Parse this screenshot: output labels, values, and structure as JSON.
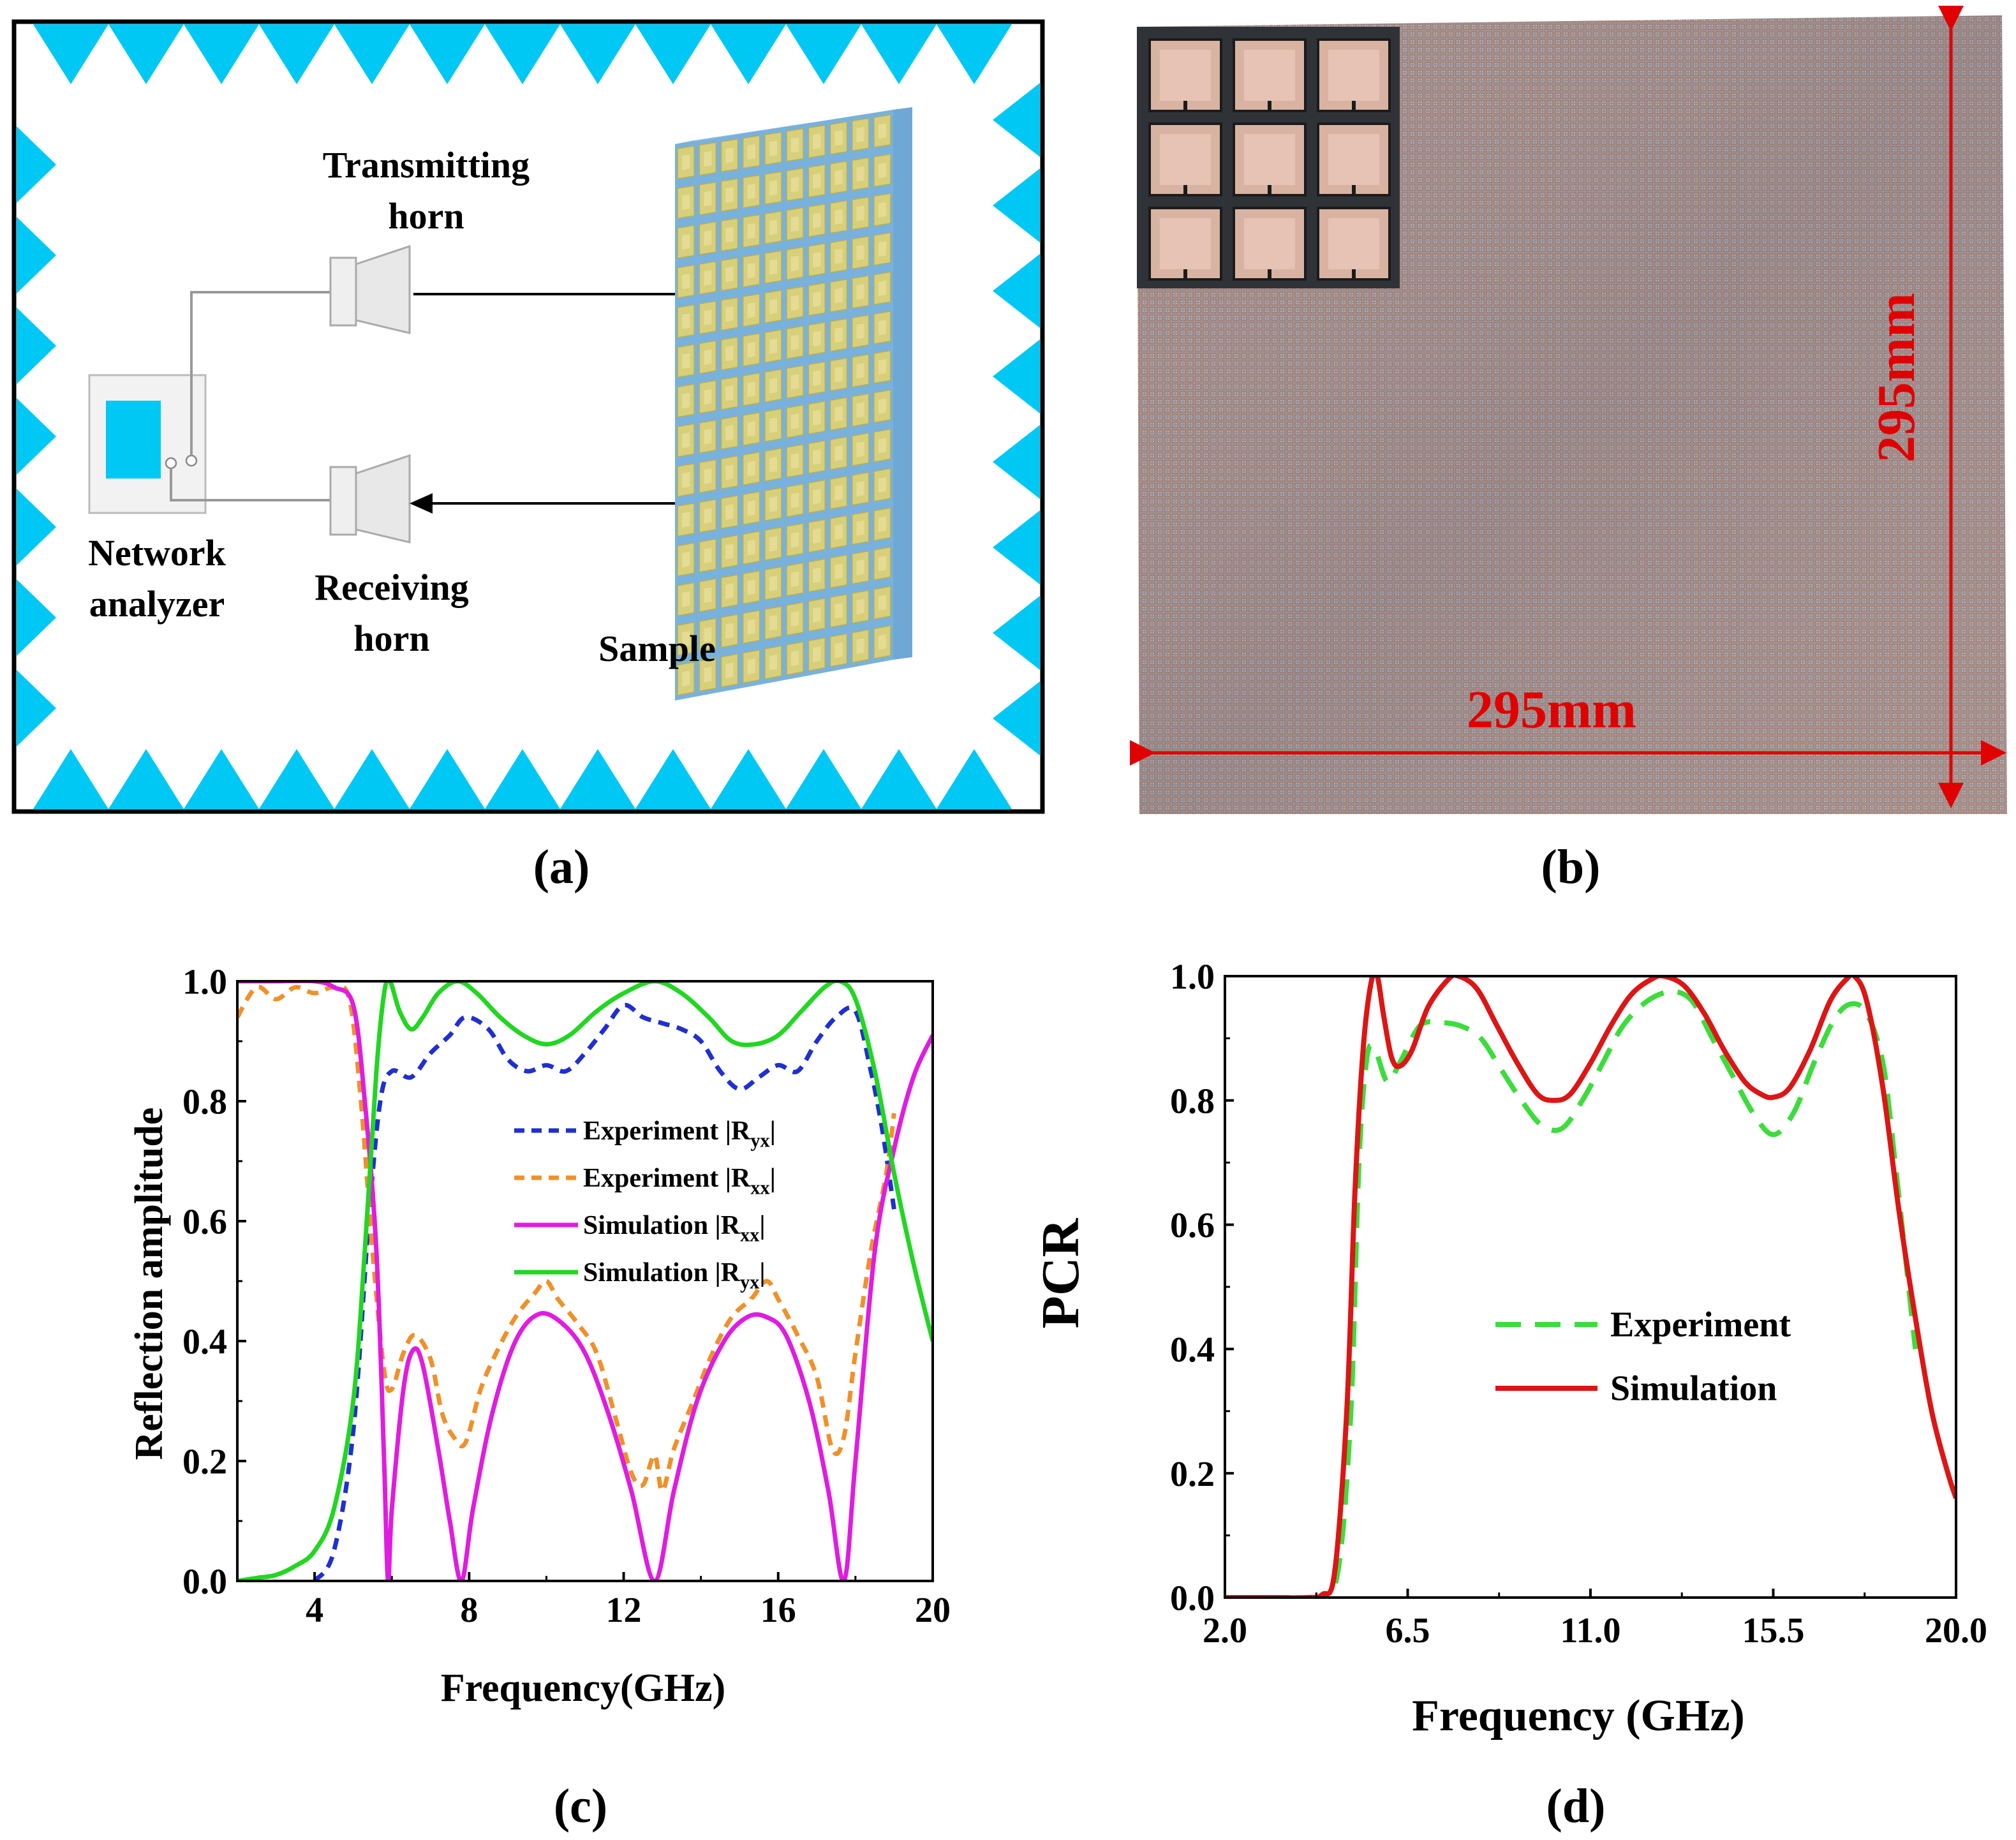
{
  "panels": {
    "a": {
      "label": "(a)",
      "transmitting_horn": [
        "Transmitting",
        "horn"
      ],
      "receiving_horn": [
        "Receiving",
        "horn"
      ],
      "network_analyzer": [
        "Network",
        "analyzer"
      ],
      "sample": "Sample"
    },
    "b": {
      "label": "(b)",
      "width_dim": "295mm",
      "height_dim": "295mm"
    },
    "c": {
      "label": "(c)"
    },
    "d": {
      "label": "(d)"
    }
  },
  "colors": {
    "absorber": "#00c8f5",
    "sample_face": "#d8cf7a",
    "sample_edge": "#6fa8d4",
    "photo_base": "#a98a80",
    "dimension": "#e00000",
    "exp_ryx": "#1f2fd1",
    "exp_rxx": "#f0902a",
    "sim_rxx": "#e01ce0",
    "sim_ryx": "#22d622",
    "pcr_exp": "#3ddc3d",
    "pcr_sim": "#dd1515"
  },
  "chart_data": [
    {
      "id": "c",
      "type": "line",
      "xlabel": "Frequency(GHz)",
      "ylabel": "Reflection amplitude",
      "xlim": [
        2,
        20
      ],
      "ylim": [
        0,
        1
      ],
      "xticks": [
        4,
        8,
        12,
        16,
        20
      ],
      "yticks": [
        0.0,
        0.2,
        0.4,
        0.6,
        0.8,
        1.0
      ],
      "xtick_labels": [
        "4",
        "8",
        "12",
        "16",
        "20"
      ],
      "ytick_labels": [
        "0.0",
        "0.2",
        "0.4",
        "0.6",
        "0.8",
        "1.0"
      ],
      "legend_position": "center",
      "series": [
        {
          "name": "Experiment |R_yx|",
          "legend": {
            "main": "Experiment |R",
            "sub": "yx",
            "end": "|"
          },
          "style": "dashed",
          "color_key": "exp_ryx",
          "points": [
            [
              4.0,
              0.0
            ],
            [
              4.5,
              0.05
            ],
            [
              5.0,
              0.25
            ],
            [
              5.4,
              0.6
            ],
            [
              5.7,
              0.8
            ],
            [
              6.0,
              0.85
            ],
            [
              6.5,
              0.84
            ],
            [
              7.0,
              0.88
            ],
            [
              7.5,
              0.91
            ],
            [
              7.9,
              0.94
            ],
            [
              8.5,
              0.92
            ],
            [
              9.0,
              0.87
            ],
            [
              9.5,
              0.85
            ],
            [
              10.0,
              0.86
            ],
            [
              10.5,
              0.85
            ],
            [
              11.0,
              0.88
            ],
            [
              11.5,
              0.92
            ],
            [
              12.0,
              0.96
            ],
            [
              12.5,
              0.94
            ],
            [
              13.0,
              0.93
            ],
            [
              13.5,
              0.92
            ],
            [
              14.0,
              0.9
            ],
            [
              14.5,
              0.85
            ],
            [
              15.0,
              0.82
            ],
            [
              15.5,
              0.84
            ],
            [
              16.0,
              0.86
            ],
            [
              16.5,
              0.85
            ],
            [
              17.0,
              0.9
            ],
            [
              17.5,
              0.94
            ],
            [
              18.0,
              0.95
            ],
            [
              18.4,
              0.85
            ],
            [
              18.7,
              0.75
            ],
            [
              19.0,
              0.62
            ]
          ]
        },
        {
          "name": "Experiment |R_xx|",
          "legend": {
            "main": "Experiment |R",
            "sub": "xx",
            "end": "|"
          },
          "style": "dashed",
          "color_key": "exp_rxx",
          "points": [
            [
              2.0,
              0.94
            ],
            [
              2.5,
              0.99
            ],
            [
              3.0,
              0.97
            ],
            [
              3.5,
              0.99
            ],
            [
              4.0,
              0.98
            ],
            [
              4.5,
              0.99
            ],
            [
              4.9,
              0.97
            ],
            [
              5.2,
              0.8
            ],
            [
              5.5,
              0.55
            ],
            [
              5.8,
              0.35
            ],
            [
              6.0,
              0.32
            ],
            [
              6.3,
              0.38
            ],
            [
              6.6,
              0.41
            ],
            [
              7.0,
              0.37
            ],
            [
              7.3,
              0.28
            ],
            [
              7.6,
              0.24
            ],
            [
              7.9,
              0.23
            ],
            [
              8.3,
              0.32
            ],
            [
              8.7,
              0.38
            ],
            [
              9.2,
              0.44
            ],
            [
              9.7,
              0.48
            ],
            [
              10.0,
              0.5
            ],
            [
              10.3,
              0.47
            ],
            [
              10.8,
              0.43
            ],
            [
              11.3,
              0.38
            ],
            [
              11.8,
              0.27
            ],
            [
              12.2,
              0.18
            ],
            [
              12.5,
              0.16
            ],
            [
              12.8,
              0.21
            ],
            [
              13.0,
              0.15
            ],
            [
              13.3,
              0.22
            ],
            [
              13.8,
              0.3
            ],
            [
              14.3,
              0.38
            ],
            [
              14.8,
              0.44
            ],
            [
              15.3,
              0.47
            ],
            [
              15.7,
              0.5
            ],
            [
              16.0,
              0.47
            ],
            [
              16.5,
              0.41
            ],
            [
              17.0,
              0.34
            ],
            [
              17.4,
              0.22
            ],
            [
              17.7,
              0.24
            ],
            [
              18.0,
              0.38
            ],
            [
              18.4,
              0.55
            ],
            [
              18.8,
              0.68
            ],
            [
              19.0,
              0.78
            ]
          ]
        },
        {
          "name": "Simulation |R_xx|",
          "legend": {
            "main": "Simulation |R",
            "sub": "xx",
            "end": "|"
          },
          "style": "solid",
          "color_key": "sim_rxx",
          "points": [
            [
              2.0,
              1.0
            ],
            [
              3.0,
              1.0
            ],
            [
              4.0,
              1.0
            ],
            [
              4.5,
              0.99
            ],
            [
              5.0,
              0.96
            ],
            [
              5.3,
              0.8
            ],
            [
              5.6,
              0.55
            ],
            [
              5.8,
              0.2
            ],
            [
              5.9,
              0.0
            ],
            [
              6.0,
              0.12
            ],
            [
              6.3,
              0.32
            ],
            [
              6.55,
              0.385
            ],
            [
              6.8,
              0.36
            ],
            [
              7.2,
              0.22
            ],
            [
              7.5,
              0.1
            ],
            [
              7.8,
              0.0
            ],
            [
              8.1,
              0.12
            ],
            [
              8.6,
              0.28
            ],
            [
              9.2,
              0.4
            ],
            [
              9.8,
              0.445
            ],
            [
              10.4,
              0.43
            ],
            [
              11.0,
              0.38
            ],
            [
              11.6,
              0.28
            ],
            [
              12.2,
              0.15
            ],
            [
              12.8,
              0.0
            ],
            [
              13.3,
              0.15
            ],
            [
              13.9,
              0.3
            ],
            [
              14.6,
              0.4
            ],
            [
              15.2,
              0.44
            ],
            [
              15.7,
              0.44
            ],
            [
              16.2,
              0.41
            ],
            [
              16.8,
              0.3
            ],
            [
              17.3,
              0.15
            ],
            [
              17.7,
              0.0
            ],
            [
              18.0,
              0.2
            ],
            [
              18.5,
              0.55
            ],
            [
              19.0,
              0.72
            ],
            [
              19.5,
              0.84
            ],
            [
              20.0,
              0.91
            ]
          ]
        },
        {
          "name": "Simulation |R_yx|",
          "legend": {
            "main": "Simulation |R",
            "sub": "yx",
            "end": "|"
          },
          "style": "solid",
          "color_key": "sim_ryx",
          "points": [
            [
              2.0,
              0.0
            ],
            [
              2.5,
              0.005
            ],
            [
              3.0,
              0.01
            ],
            [
              3.5,
              0.025
            ],
            [
              4.0,
              0.05
            ],
            [
              4.5,
              0.12
            ],
            [
              5.0,
              0.3
            ],
            [
              5.3,
              0.55
            ],
            [
              5.6,
              0.85
            ],
            [
              5.8,
              0.98
            ],
            [
              5.95,
              1.0
            ],
            [
              6.2,
              0.95
            ],
            [
              6.5,
              0.92
            ],
            [
              6.8,
              0.94
            ],
            [
              7.2,
              0.98
            ],
            [
              7.7,
              1.0
            ],
            [
              8.2,
              0.98
            ],
            [
              8.8,
              0.94
            ],
            [
              9.4,
              0.91
            ],
            [
              10.0,
              0.895
            ],
            [
              10.6,
              0.91
            ],
            [
              11.3,
              0.95
            ],
            [
              12.0,
              0.98
            ],
            [
              12.8,
              1.0
            ],
            [
              13.5,
              0.98
            ],
            [
              14.2,
              0.94
            ],
            [
              14.8,
              0.9
            ],
            [
              15.4,
              0.895
            ],
            [
              16.0,
              0.91
            ],
            [
              16.6,
              0.95
            ],
            [
              17.2,
              0.99
            ],
            [
              17.6,
              1.0
            ],
            [
              18.0,
              0.97
            ],
            [
              18.5,
              0.85
            ],
            [
              19.0,
              0.68
            ],
            [
              19.5,
              0.53
            ],
            [
              20.0,
              0.4
            ]
          ]
        }
      ]
    },
    {
      "id": "d",
      "type": "line",
      "xlabel": "Frequency (GHz)",
      "ylabel": "PCR",
      "xlim": [
        2.0,
        20.0
      ],
      "ylim": [
        0,
        1
      ],
      "xticks": [
        2.0,
        6.5,
        11.0,
        15.5,
        20.0
      ],
      "yticks": [
        0.0,
        0.2,
        0.4,
        0.6,
        0.8,
        1.0
      ],
      "xtick_labels": [
        "2.0",
        "6.5",
        "11.0",
        "15.5",
        "20.0"
      ],
      "ytick_labels": [
        "0.0",
        "0.2",
        "0.4",
        "0.6",
        "0.8",
        "1.0"
      ],
      "legend_position": "center",
      "series": [
        {
          "name": "Experiment",
          "legend": {
            "main": "Experiment",
            "sub": "",
            "end": ""
          },
          "style": "dashed",
          "color_key": "pcr_exp",
          "points": [
            [
              2.0,
              0.0
            ],
            [
              3.5,
              0.0
            ],
            [
              4.4,
              0.0
            ],
            [
              4.8,
              0.05
            ],
            [
              5.1,
              0.3
            ],
            [
              5.3,
              0.7
            ],
            [
              5.5,
              0.87
            ],
            [
              5.7,
              0.88
            ],
            [
              6.0,
              0.83
            ],
            [
              6.3,
              0.86
            ],
            [
              6.8,
              0.92
            ],
            [
              7.3,
              0.925
            ],
            [
              7.8,
              0.92
            ],
            [
              8.3,
              0.9
            ],
            [
              8.8,
              0.85
            ],
            [
              9.3,
              0.8
            ],
            [
              9.8,
              0.76
            ],
            [
              10.3,
              0.755
            ],
            [
              10.8,
              0.8
            ],
            [
              11.3,
              0.86
            ],
            [
              11.8,
              0.92
            ],
            [
              12.4,
              0.96
            ],
            [
              13.0,
              0.975
            ],
            [
              13.5,
              0.96
            ],
            [
              14.0,
              0.9
            ],
            [
              14.5,
              0.84
            ],
            [
              15.0,
              0.78
            ],
            [
              15.5,
              0.745
            ],
            [
              16.0,
              0.78
            ],
            [
              16.5,
              0.86
            ],
            [
              17.0,
              0.93
            ],
            [
              17.4,
              0.955
            ],
            [
              17.8,
              0.94
            ],
            [
              18.2,
              0.86
            ],
            [
              18.5,
              0.7
            ],
            [
              18.8,
              0.52
            ],
            [
              19.0,
              0.4
            ]
          ]
        },
        {
          "name": "Simulation",
          "legend": {
            "main": "Simulation",
            "sub": "",
            "end": ""
          },
          "style": "solid",
          "color_key": "pcr_sim",
          "points": [
            [
              2.0,
              0.0
            ],
            [
              3.0,
              0.0
            ],
            [
              4.0,
              0.0
            ],
            [
              4.4,
              0.005
            ],
            [
              4.7,
              0.04
            ],
            [
              5.0,
              0.3
            ],
            [
              5.2,
              0.65
            ],
            [
              5.4,
              0.88
            ],
            [
              5.6,
              0.99
            ],
            [
              5.75,
              1.0
            ],
            [
              5.9,
              0.94
            ],
            [
              6.1,
              0.87
            ],
            [
              6.3,
              0.855
            ],
            [
              6.6,
              0.88
            ],
            [
              7.0,
              0.95
            ],
            [
              7.5,
              0.995
            ],
            [
              7.75,
              1.0
            ],
            [
              8.2,
              0.98
            ],
            [
              8.7,
              0.92
            ],
            [
              9.2,
              0.86
            ],
            [
              9.7,
              0.81
            ],
            [
              10.1,
              0.8
            ],
            [
              10.5,
              0.81
            ],
            [
              11.0,
              0.86
            ],
            [
              11.5,
              0.92
            ],
            [
              12.0,
              0.97
            ],
            [
              12.5,
              0.995
            ],
            [
              12.8,
              1.0
            ],
            [
              13.3,
              0.985
            ],
            [
              13.8,
              0.94
            ],
            [
              14.3,
              0.88
            ],
            [
              14.8,
              0.83
            ],
            [
              15.2,
              0.81
            ],
            [
              15.5,
              0.805
            ],
            [
              15.9,
              0.82
            ],
            [
              16.4,
              0.88
            ],
            [
              16.9,
              0.96
            ],
            [
              17.3,
              0.995
            ],
            [
              17.5,
              1.0
            ],
            [
              17.8,
              0.96
            ],
            [
              18.2,
              0.82
            ],
            [
              18.6,
              0.62
            ],
            [
              19.0,
              0.45
            ],
            [
              19.4,
              0.3
            ],
            [
              19.8,
              0.2
            ],
            [
              20.0,
              0.16
            ]
          ]
        }
      ]
    }
  ]
}
